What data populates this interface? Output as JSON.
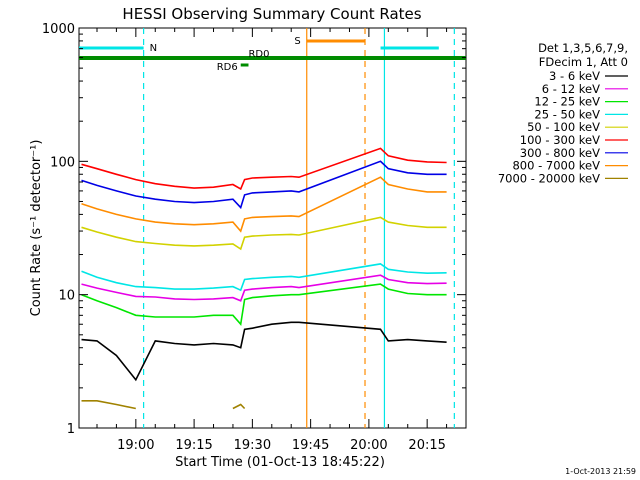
{
  "chart_data": {
    "type": "line",
    "title": "HESSI Observing Summary Count Rates",
    "xlabel": "Start Time (01-Oct-13 18:45:22)",
    "ylabel": "Count Rate (s⁻¹ detector⁻¹)",
    "y_scale": "log",
    "ylim": [
      1,
      1000
    ],
    "xlim": [
      "18:45:22",
      "20:25:00"
    ],
    "x_ticks": [
      "19:00",
      "19:15",
      "19:30",
      "19:45",
      "20:00",
      "20:15"
    ],
    "y_ticks": [
      "1",
      "10",
      "100",
      "1000"
    ],
    "x": [
      "18:46",
      "18:50",
      "18:55",
      "19:00",
      "19:05",
      "19:10",
      "19:15",
      "19:20",
      "19:25",
      "19:27",
      "19:28",
      "19:30",
      "19:35",
      "19:40",
      "19:42",
      "20:03",
      "20:05",
      "20:10",
      "20:15",
      "20:20"
    ],
    "series": [
      {
        "name": "3 - 6 keV",
        "color": "#000000",
        "values": [
          4.6,
          4.5,
          3.5,
          2.3,
          4.5,
          4.3,
          4.2,
          4.3,
          4.2,
          4.0,
          5.5,
          5.6,
          6.0,
          6.2,
          6.2,
          5.5,
          4.5,
          4.6,
          4.5,
          4.4
        ]
      },
      {
        "name": "6 - 12 keV",
        "color": "#e600e6",
        "values": [
          12,
          11.2,
          10.4,
          9.7,
          9.6,
          9.3,
          9.2,
          9.3,
          9.5,
          9,
          10.8,
          11,
          11.3,
          11.5,
          11.3,
          14,
          13,
          12.3,
          12.1,
          12.2
        ]
      },
      {
        "name": "12 - 25 keV",
        "color": "#00e600",
        "values": [
          10,
          9,
          8,
          7,
          6.8,
          6.8,
          6.8,
          7,
          7,
          6,
          9.2,
          9.5,
          9.8,
          10,
          10,
          12,
          11,
          10.2,
          10,
          10
        ]
      },
      {
        "name": "25 - 50 keV",
        "color": "#00e6e6",
        "values": [
          15,
          13.5,
          12.3,
          11.5,
          11.3,
          11,
          11,
          11.2,
          11.5,
          10.8,
          13,
          13.2,
          13.5,
          13.7,
          13.5,
          17,
          15.5,
          14.8,
          14.5,
          14.6
        ]
      },
      {
        "name": "50 - 100 keV",
        "color": "#d2d200",
        "values": [
          32,
          29.5,
          27,
          25,
          24.2,
          23.5,
          23.2,
          23.5,
          24,
          22,
          27,
          27.5,
          28,
          28.3,
          28,
          38,
          35,
          33,
          32,
          32
        ]
      },
      {
        "name": "100 - 300 keV",
        "color": "#ff0000",
        "values": [
          95,
          88,
          80,
          73,
          68,
          65,
          63,
          64,
          67,
          62,
          73,
          75,
          76,
          77,
          76,
          125,
          110,
          102,
          99,
          98
        ]
      },
      {
        "name": "300 - 800 keV",
        "color": "#0000e6",
        "values": [
          72,
          66,
          60,
          55,
          52,
          50,
          49,
          50,
          52,
          45,
          56,
          58,
          59,
          60,
          59,
          100,
          88,
          82,
          80,
          80
        ]
      },
      {
        "name": "800 - 7000 keV",
        "color": "#ff8c00",
        "values": [
          48,
          44,
          40,
          37,
          35,
          34,
          33.5,
          34,
          35,
          30,
          37,
          38,
          38.5,
          39,
          38.5,
          76,
          67,
          62,
          59,
          59
        ]
      },
      {
        "name": "7000 - 20000 keV",
        "color": "#a08200",
        "values": [
          1.6,
          1.6,
          1.5,
          1.4,
          null,
          null,
          null,
          null,
          1.4,
          1.5,
          1.4,
          null,
          null,
          null,
          null,
          null,
          null,
          null,
          null,
          null
        ]
      }
    ],
    "flags": [
      {
        "label": "N",
        "color": "#00e6e6",
        "spans": [
          [
            "18:45:22",
            "19:02"
          ],
          [
            "20:03",
            "20:18"
          ]
        ]
      },
      {
        "label": "S",
        "color": "#ff8c00",
        "spans": [
          [
            "19:44",
            "19:59"
          ]
        ]
      },
      {
        "label": "RD0",
        "color": "#008c00",
        "spans": [
          [
            "18:45:22",
            "20:25:00"
          ]
        ]
      },
      {
        "label": "RD6",
        "color": "#008c00",
        "spans": [
          [
            "19:27",
            "19:29"
          ]
        ]
      }
    ],
    "vertical_lines": [
      {
        "time": "19:02",
        "color": "#00e6e6",
        "style": "dashed"
      },
      {
        "time": "19:44",
        "color": "#ff8c00",
        "style": "solid"
      },
      {
        "time": "19:59",
        "color": "#ff8c00",
        "style": "dashed"
      },
      {
        "time": "20:04",
        "color": "#00e6e6",
        "style": "solid"
      },
      {
        "time": "20:22",
        "color": "#00e6e6",
        "style": "dashed"
      }
    ],
    "legend": {
      "placement": "right",
      "header": [
        "Det 1,3,5,6,7,9,",
        "FDecim 1, Att 0"
      ]
    },
    "grid": false,
    "footer_timestamp": "1-Oct-2013 21:59"
  }
}
